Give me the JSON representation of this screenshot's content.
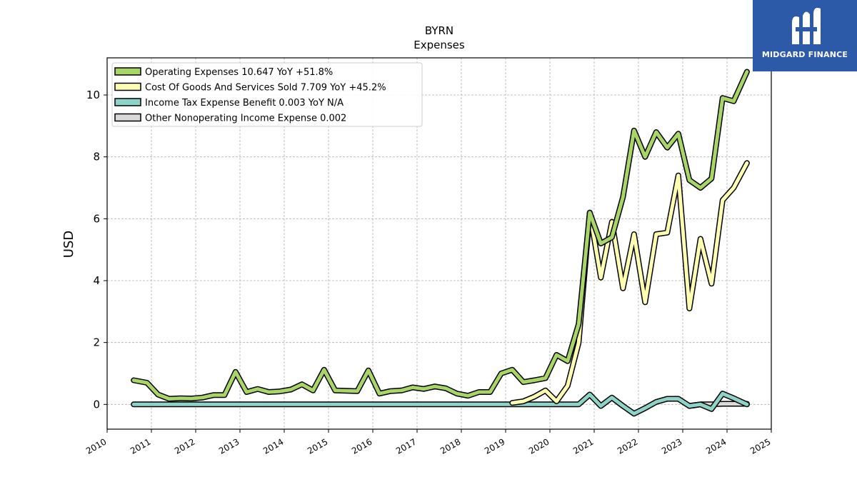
{
  "brand": {
    "name": "MIDGARD FINANCE",
    "bg_color": "#2d5aa8"
  },
  "chart_data": {
    "type": "line",
    "title": "BYRN",
    "subtitle": "Expenses",
    "ylabel": "USD",
    "xlabel": "",
    "xlim": [
      2010.0,
      2025.0
    ],
    "ylim": [
      -0.8,
      11.2
    ],
    "x_ticks": [
      2010,
      2011,
      2012,
      2013,
      2014,
      2015,
      2016,
      2017,
      2018,
      2019,
      2020,
      2021,
      2022,
      2023,
      2024,
      2025
    ],
    "y_ticks": [
      0,
      2,
      4,
      6,
      8,
      10
    ],
    "grid": true,
    "legend_position": "top-left",
    "series": [
      {
        "name": "Operating Expenses",
        "legend": "Operating Expenses  10.647 YoY +51.8%",
        "color": "#a8d468",
        "points": [
          [
            2010.6,
            0.78
          ],
          [
            2010.9,
            0.7
          ],
          [
            2011.15,
            0.32
          ],
          [
            2011.4,
            0.18
          ],
          [
            2011.65,
            0.2
          ],
          [
            2011.9,
            0.19
          ],
          [
            2012.15,
            0.22
          ],
          [
            2012.4,
            0.3
          ],
          [
            2012.65,
            0.3
          ],
          [
            2012.9,
            1.05
          ],
          [
            2013.15,
            0.4
          ],
          [
            2013.4,
            0.5
          ],
          [
            2013.65,
            0.4
          ],
          [
            2013.9,
            0.42
          ],
          [
            2014.15,
            0.48
          ],
          [
            2014.4,
            0.65
          ],
          [
            2014.65,
            0.45
          ],
          [
            2014.9,
            1.12
          ],
          [
            2015.15,
            0.45
          ],
          [
            2015.4,
            0.44
          ],
          [
            2015.65,
            0.43
          ],
          [
            2015.9,
            1.1
          ],
          [
            2016.15,
            0.35
          ],
          [
            2016.4,
            0.43
          ],
          [
            2016.65,
            0.45
          ],
          [
            2016.9,
            0.55
          ],
          [
            2017.15,
            0.5
          ],
          [
            2017.4,
            0.58
          ],
          [
            2017.65,
            0.52
          ],
          [
            2017.9,
            0.35
          ],
          [
            2018.15,
            0.28
          ],
          [
            2018.4,
            0.4
          ],
          [
            2018.65,
            0.4
          ],
          [
            2018.9,
            1.0
          ],
          [
            2019.15,
            1.12
          ],
          [
            2019.4,
            0.72
          ],
          [
            2019.65,
            0.78
          ],
          [
            2019.9,
            0.85
          ],
          [
            2020.15,
            1.6
          ],
          [
            2020.4,
            1.4
          ],
          [
            2020.65,
            2.6
          ],
          [
            2020.9,
            6.2
          ],
          [
            2021.15,
            5.2
          ],
          [
            2021.4,
            5.4
          ],
          [
            2021.65,
            6.7
          ],
          [
            2021.9,
            8.85
          ],
          [
            2022.15,
            8.0
          ],
          [
            2022.4,
            8.8
          ],
          [
            2022.65,
            8.3
          ],
          [
            2022.9,
            8.75
          ],
          [
            2023.15,
            7.25
          ],
          [
            2023.4,
            7.0
          ],
          [
            2023.65,
            7.3
          ],
          [
            2023.9,
            9.9
          ],
          [
            2024.15,
            9.8
          ],
          [
            2024.45,
            10.75
          ]
        ]
      },
      {
        "name": "Cost Of Goods And Services Sold",
        "legend": "Cost Of Goods And Services Sold  7.709 YoY +45.2%",
        "color": "#ffffb3",
        "points": [
          [
            2019.15,
            0.05
          ],
          [
            2019.4,
            0.1
          ],
          [
            2019.65,
            0.25
          ],
          [
            2019.9,
            0.45
          ],
          [
            2020.15,
            0.1
          ],
          [
            2020.4,
            0.6
          ],
          [
            2020.65,
            2.0
          ],
          [
            2020.9,
            6.2
          ],
          [
            2021.15,
            4.1
          ],
          [
            2021.4,
            5.9
          ],
          [
            2021.65,
            3.75
          ],
          [
            2021.9,
            5.5
          ],
          [
            2022.15,
            3.3
          ],
          [
            2022.4,
            5.5
          ],
          [
            2022.65,
            5.55
          ],
          [
            2022.9,
            7.4
          ],
          [
            2023.15,
            3.1
          ],
          [
            2023.4,
            5.35
          ],
          [
            2023.65,
            3.9
          ],
          [
            2023.9,
            6.6
          ],
          [
            2024.15,
            7.0
          ],
          [
            2024.45,
            7.8
          ]
        ]
      },
      {
        "name": "Income Tax Expense Benefit",
        "legend": "Income Tax Expense Benefit  0.003 YoY N/A",
        "color": "#8dd3c7",
        "points": [
          [
            2010.6,
            0.0
          ],
          [
            2020.65,
            0.0
          ],
          [
            2020.9,
            0.32
          ],
          [
            2021.15,
            -0.05
          ],
          [
            2021.4,
            0.22
          ],
          [
            2021.65,
            -0.05
          ],
          [
            2021.9,
            -0.3
          ],
          [
            2022.15,
            -0.12
          ],
          [
            2022.4,
            0.08
          ],
          [
            2022.65,
            0.18
          ],
          [
            2022.9,
            0.18
          ],
          [
            2023.15,
            -0.05
          ],
          [
            2023.4,
            0.0
          ],
          [
            2023.65,
            -0.15
          ],
          [
            2023.9,
            0.35
          ],
          [
            2024.15,
            0.2
          ],
          [
            2024.45,
            0.0
          ]
        ]
      },
      {
        "name": "Other Nonoperating Income Expense",
        "legend": "Other Nonoperating Income Expense  0.002",
        "color": "#d9d9d9",
        "points": [
          [
            2023.15,
            -0.05
          ],
          [
            2023.4,
            0.0
          ],
          [
            2023.65,
            0.0
          ],
          [
            2023.9,
            0.02
          ],
          [
            2024.15,
            0.02
          ],
          [
            2024.45,
            0.02
          ]
        ]
      }
    ]
  }
}
